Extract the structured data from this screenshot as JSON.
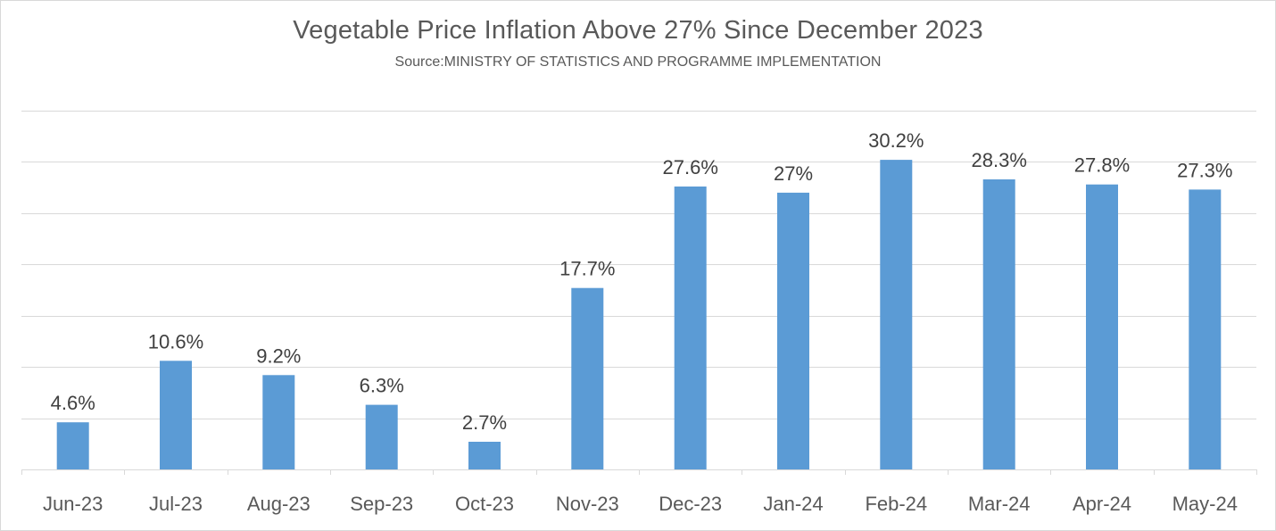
{
  "chart_data": {
    "type": "bar",
    "title": "Vegetable Price Inflation Above 27% Since December  2023",
    "subtitle": "Source:MINISTRY OF STATISTICS AND PROGRAMME IMPLEMENTATION",
    "categories": [
      "Jun-23",
      "Jul-23",
      "Aug-23",
      "Sep-23",
      "Oct-23",
      "Nov-23",
      "Dec-23",
      "Jan-24",
      "Feb-24",
      "Mar-24",
      "Apr-24",
      "May-24"
    ],
    "values": [
      4.6,
      10.6,
      9.2,
      6.3,
      2.7,
      17.7,
      27.6,
      27,
      30.2,
      28.3,
      27.8,
      27.3
    ],
    "data_labels": [
      "4.6%",
      "10.6%",
      "9.2%",
      "6.3%",
      "2.7%",
      "17.7%",
      "27.6%",
      "27%",
      "30.2%",
      "28.3%",
      "27.8%",
      "27.3%"
    ],
    "ylim": [
      0,
      35
    ],
    "grid": true,
    "y_tick_labels_shown": false,
    "legend": "none",
    "colors": {
      "bar": "#5b9bd5",
      "gridline": "#d9d9d9",
      "axis": "#d9d9d9",
      "text": "#595959"
    }
  }
}
